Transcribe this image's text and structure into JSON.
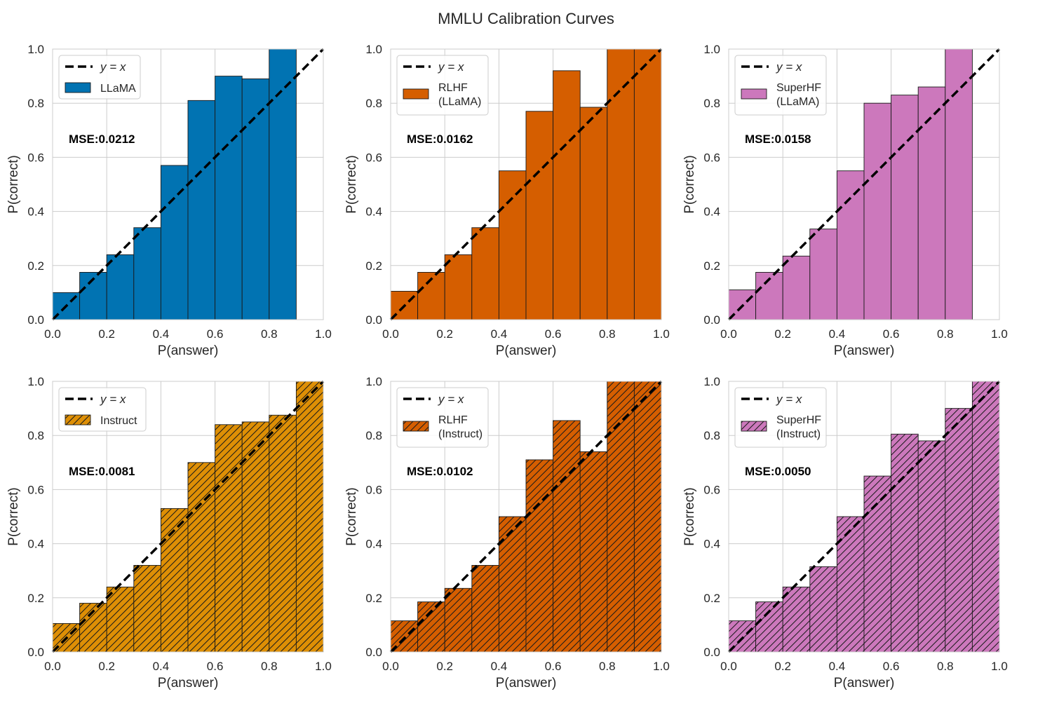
{
  "figure": {
    "title": "MMLU Calibration Curves"
  },
  "chart_data": [
    {
      "type": "bar",
      "xlabel": "P(answer)",
      "ylabel": "P(correct)",
      "xlim": [
        0,
        1
      ],
      "ylim": [
        0,
        1
      ],
      "xticks": [
        "0.0",
        "0.2",
        "0.4",
        "0.6",
        "0.8",
        "1.0"
      ],
      "yticks": [
        "0.0",
        "0.2",
        "0.4",
        "0.6",
        "0.8",
        "1.0"
      ],
      "bin_width": 0.1,
      "bins": [
        0.0,
        0.1,
        0.2,
        0.3,
        0.4,
        0.5,
        0.6,
        0.7,
        0.8
      ],
      "values": [
        0.1,
        0.175,
        0.24,
        0.34,
        0.57,
        0.81,
        0.9,
        0.89,
        1.0
      ],
      "series_name": "LLaMA",
      "legend": [
        "y = x",
        "LLaMA"
      ],
      "color": "#0173b2",
      "hatch": false,
      "annotation": "MSE:0.0212",
      "grid": true
    },
    {
      "type": "bar",
      "xlabel": "P(answer)",
      "ylabel": "P(correct)",
      "xlim": [
        0,
        1
      ],
      "ylim": [
        0,
        1
      ],
      "xticks": [
        "0.0",
        "0.2",
        "0.4",
        "0.6",
        "0.8",
        "1.0"
      ],
      "yticks": [
        "0.0",
        "0.2",
        "0.4",
        "0.6",
        "0.8",
        "1.0"
      ],
      "bin_width": 0.1,
      "bins": [
        0.0,
        0.1,
        0.2,
        0.3,
        0.4,
        0.5,
        0.6,
        0.7,
        0.8,
        0.9
      ],
      "values": [
        0.105,
        0.175,
        0.24,
        0.34,
        0.55,
        0.77,
        0.92,
        0.785,
        1.0,
        1.0
      ],
      "series_name": "RLHF\n(LLaMA)",
      "legend": [
        "y = x",
        "RLHF",
        "(LLaMA)"
      ],
      "color": "#d55e00",
      "hatch": false,
      "annotation": "MSE:0.0162",
      "grid": true
    },
    {
      "type": "bar",
      "xlabel": "P(answer)",
      "ylabel": "P(correct)",
      "xlim": [
        0,
        1
      ],
      "ylim": [
        0,
        1
      ],
      "xticks": [
        "0.0",
        "0.2",
        "0.4",
        "0.6",
        "0.8",
        "1.0"
      ],
      "yticks": [
        "0.0",
        "0.2",
        "0.4",
        "0.6",
        "0.8",
        "1.0"
      ],
      "bin_width": 0.1,
      "bins": [
        0.0,
        0.1,
        0.2,
        0.3,
        0.4,
        0.5,
        0.6,
        0.7,
        0.8
      ],
      "values": [
        0.11,
        0.175,
        0.235,
        0.335,
        0.55,
        0.8,
        0.83,
        0.86,
        1.0
      ],
      "series_name": "SuperHF\n(LLaMA)",
      "legend": [
        "y = x",
        "SuperHF",
        "(LLaMA)"
      ],
      "color": "#cc78bc",
      "hatch": false,
      "annotation": "MSE:0.0158",
      "grid": true
    },
    {
      "type": "bar",
      "xlabel": "P(answer)",
      "ylabel": "P(correct)",
      "xlim": [
        0,
        1
      ],
      "ylim": [
        0,
        1
      ],
      "xticks": [
        "0.0",
        "0.2",
        "0.4",
        "0.6",
        "0.8",
        "1.0"
      ],
      "yticks": [
        "0.0",
        "0.2",
        "0.4",
        "0.6",
        "0.8",
        "1.0"
      ],
      "bin_width": 0.1,
      "bins": [
        0.0,
        0.1,
        0.2,
        0.3,
        0.4,
        0.5,
        0.6,
        0.7,
        0.8,
        0.9
      ],
      "values": [
        0.105,
        0.18,
        0.24,
        0.32,
        0.53,
        0.7,
        0.84,
        0.85,
        0.875,
        1.0
      ],
      "series_name": "Instruct",
      "legend": [
        "y = x",
        "Instruct"
      ],
      "color": "#de8f05",
      "hatch": true,
      "annotation": "MSE:0.0081",
      "grid": true
    },
    {
      "type": "bar",
      "xlabel": "P(answer)",
      "ylabel": "P(correct)",
      "xlim": [
        0,
        1
      ],
      "ylim": [
        0,
        1
      ],
      "xticks": [
        "0.0",
        "0.2",
        "0.4",
        "0.6",
        "0.8",
        "1.0"
      ],
      "yticks": [
        "0.0",
        "0.2",
        "0.4",
        "0.6",
        "0.8",
        "1.0"
      ],
      "bin_width": 0.1,
      "bins": [
        0.0,
        0.1,
        0.2,
        0.3,
        0.4,
        0.5,
        0.6,
        0.7,
        0.8,
        0.9
      ],
      "values": [
        0.115,
        0.185,
        0.235,
        0.32,
        0.5,
        0.71,
        0.855,
        0.74,
        1.0,
        1.0
      ],
      "series_name": "RLHF\n(Instruct)",
      "legend": [
        "y = x",
        "RLHF",
        "(Instruct)"
      ],
      "color": "#d55e00",
      "hatch": true,
      "annotation": "MSE:0.0102",
      "grid": true
    },
    {
      "type": "bar",
      "xlabel": "P(answer)",
      "ylabel": "P(correct)",
      "xlim": [
        0,
        1
      ],
      "ylim": [
        0,
        1
      ],
      "xticks": [
        "0.0",
        "0.2",
        "0.4",
        "0.6",
        "0.8",
        "1.0"
      ],
      "yticks": [
        "0.0",
        "0.2",
        "0.4",
        "0.6",
        "0.8",
        "1.0"
      ],
      "bin_width": 0.1,
      "bins": [
        0.0,
        0.1,
        0.2,
        0.3,
        0.4,
        0.5,
        0.6,
        0.7,
        0.8,
        0.9
      ],
      "values": [
        0.115,
        0.185,
        0.24,
        0.315,
        0.5,
        0.65,
        0.805,
        0.78,
        0.9,
        1.0
      ],
      "series_name": "SuperHF\n(Instruct)",
      "legend": [
        "y = x",
        "SuperHF",
        "(Instruct)"
      ],
      "color": "#cc78bc",
      "hatch": true,
      "annotation": "MSE:0.0050",
      "grid": true
    }
  ]
}
